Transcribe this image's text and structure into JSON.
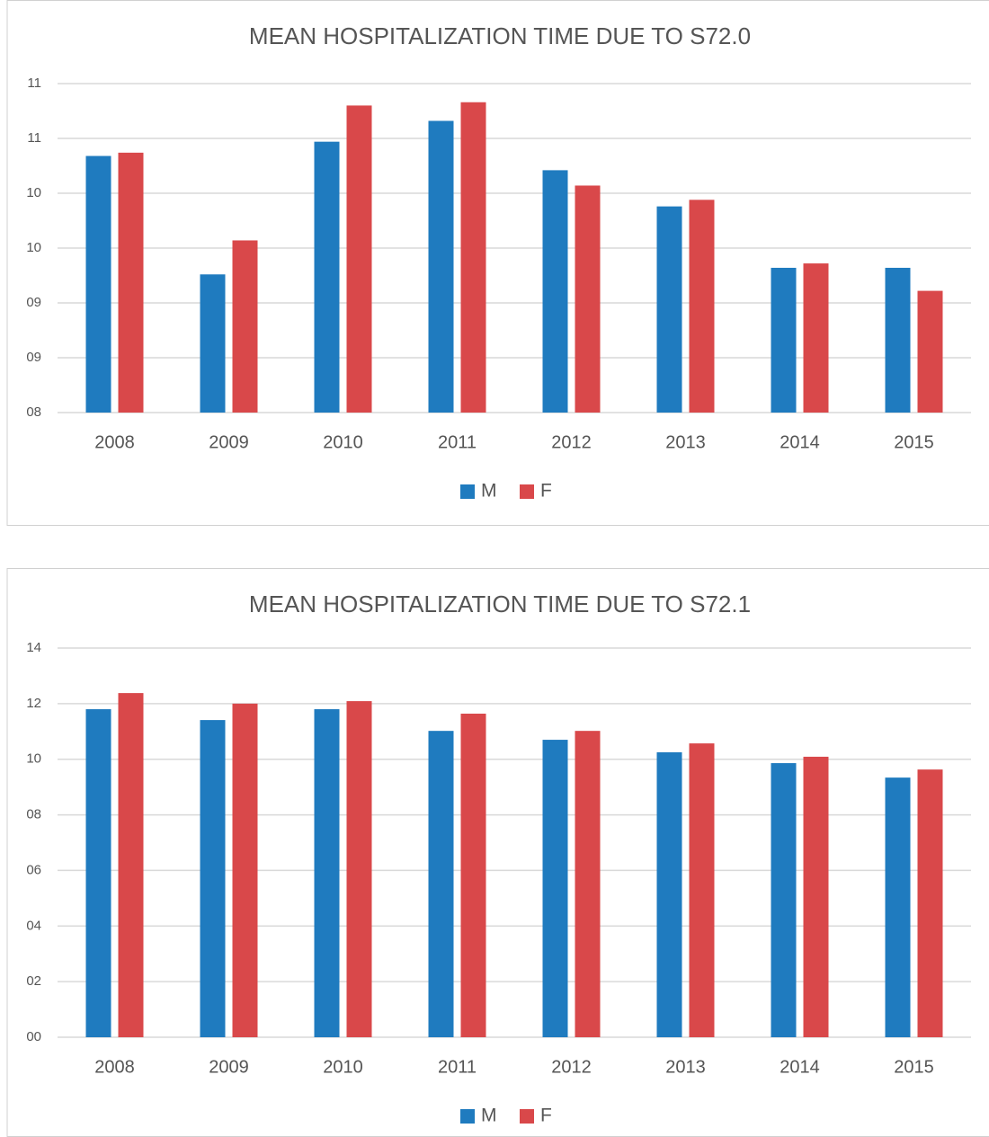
{
  "chart_data": [
    {
      "type": "bar",
      "title": "MEAN HOSPITALIZATION TIME DUE TO S72.0",
      "categories": [
        "2008",
        "2009",
        "2010",
        "2011",
        "2012",
        "2013",
        "2014",
        "2015"
      ],
      "series": [
        {
          "name": "M",
          "color": "#1f7bbf",
          "values": [
            10.34,
            9.26,
            10.47,
            10.66,
            10.21,
            9.88,
            9.32,
            9.32
          ]
        },
        {
          "name": "F",
          "color": "#d9484a",
          "values": [
            10.37,
            9.57,
            10.8,
            10.83,
            10.07,
            9.94,
            9.36,
            9.11
          ]
        }
      ],
      "ylim": [
        8,
        11
      ],
      "yticks": [
        {
          "value": 8,
          "label": "08"
        },
        {
          "value": 8.5,
          "label": "09"
        },
        {
          "value": 9,
          "label": "09"
        },
        {
          "value": 9.5,
          "label": "10"
        },
        {
          "value": 10,
          "label": "10"
        },
        {
          "value": 10.5,
          "label": "11"
        },
        {
          "value": 11,
          "label": "11"
        }
      ],
      "grid": true,
      "legend": "bottom"
    },
    {
      "type": "bar",
      "title": "MEAN HOSPITALIZATION TIME DUE TO S72.1",
      "categories": [
        "2008",
        "2009",
        "2010",
        "2011",
        "2012",
        "2013",
        "2014",
        "2015"
      ],
      "series": [
        {
          "name": "M",
          "color": "#1f7bbf",
          "values": [
            11.8,
            11.41,
            11.8,
            11.02,
            10.7,
            10.25,
            9.86,
            9.34
          ]
        },
        {
          "name": "F",
          "color": "#d9484a",
          "values": [
            12.38,
            12.0,
            12.09,
            11.64,
            11.02,
            10.57,
            10.09,
            9.63
          ]
        }
      ],
      "ylim": [
        0,
        14
      ],
      "yticks": [
        {
          "value": 0,
          "label": "00"
        },
        {
          "value": 2,
          "label": "02"
        },
        {
          "value": 4,
          "label": "04"
        },
        {
          "value": 6,
          "label": "06"
        },
        {
          "value": 8,
          "label": "08"
        },
        {
          "value": 10,
          "label": "10"
        },
        {
          "value": 12,
          "label": "12"
        },
        {
          "value": 14,
          "label": "14"
        }
      ],
      "grid": true,
      "legend": "bottom"
    }
  ]
}
